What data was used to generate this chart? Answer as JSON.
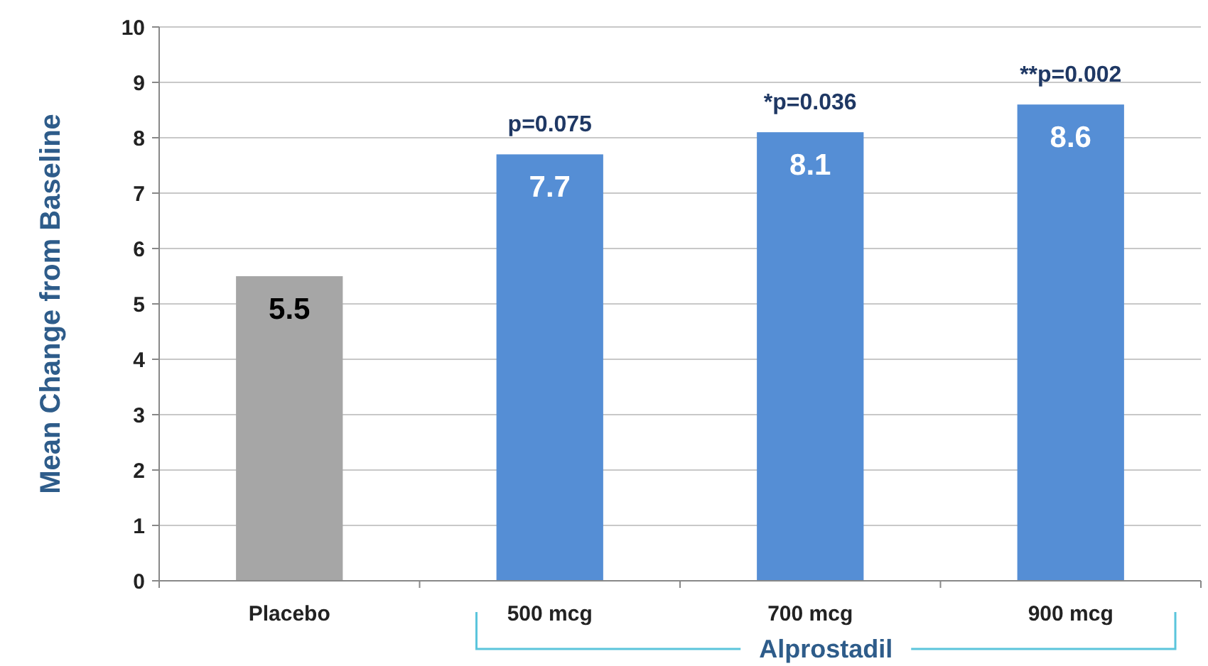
{
  "chart_data": {
    "type": "bar",
    "ylabel": "Mean Change from Baseline",
    "categories": [
      "Placebo",
      "500 mcg",
      "700 mcg",
      "900 mcg"
    ],
    "values": [
      5.5,
      7.7,
      8.1,
      8.6
    ],
    "colors": [
      "#a6a6a6",
      "#558ed5",
      "#558ed5",
      "#558ed5"
    ],
    "data_labels": true,
    "ylim": [
      0,
      10
    ],
    "yticks": [
      0,
      1,
      2,
      3,
      4,
      5,
      6,
      7,
      8,
      9,
      10
    ],
    "grid": "y",
    "annotations": [
      {
        "text": "p=0.075",
        "x": "500 mcg",
        "y": 7.7
      },
      {
        "text": "*p=0.036",
        "x": "700 mcg",
        "y": 8.1
      },
      {
        "text": "**p=0.002",
        "x": "900 mcg",
        "y": 8.6
      },
      "Alprostadil"
    ]
  }
}
